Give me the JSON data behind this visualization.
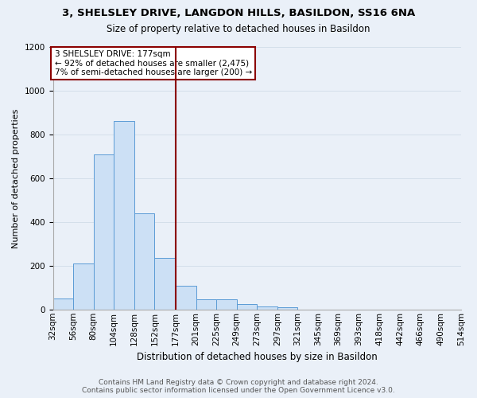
{
  "title1": "3, SHELSLEY DRIVE, LANGDON HILLS, BASILDON, SS16 6NA",
  "title2": "Size of property relative to detached houses in Basildon",
  "xlabel": "Distribution of detached houses by size in Basildon",
  "ylabel": "Number of detached properties",
  "footer1": "Contains HM Land Registry data © Crown copyright and database right 2024.",
  "footer2": "Contains public sector information licensed under the Open Government Licence v3.0.",
  "annotation_line1": "3 SHELSLEY DRIVE: 177sqm",
  "annotation_line2": "← 92% of detached houses are smaller (2,475)",
  "annotation_line3": "7% of semi-detached houses are larger (200) →",
  "bar_edges": [
    32,
    56,
    80,
    104,
    128,
    152,
    177,
    201,
    225,
    249,
    273,
    297,
    321,
    345,
    369,
    393,
    418,
    442,
    466,
    490,
    514
  ],
  "bar_heights": [
    50,
    210,
    710,
    860,
    440,
    235,
    110,
    45,
    45,
    25,
    15,
    10,
    0,
    0,
    0,
    0,
    0,
    0,
    0,
    0
  ],
  "bar_color": "#cce0f5",
  "bar_edgecolor": "#5b9bd5",
  "vline_color": "#8b0000",
  "vline_x": 177,
  "annotation_box_edgecolor": "#8b0000",
  "annotation_box_facecolor": "#ffffff",
  "annotation_text_color": "#000000",
  "background_color": "#eaf0f8",
  "grid_color": "#d0dce8",
  "ylim": [
    0,
    1200
  ],
  "yticks": [
    0,
    200,
    400,
    600,
    800,
    1000,
    1200
  ],
  "title1_fontsize": 9.5,
  "title2_fontsize": 8.5,
  "xlabel_fontsize": 8.5,
  "ylabel_fontsize": 8,
  "tick_fontsize": 7.5,
  "footer_fontsize": 6.5
}
